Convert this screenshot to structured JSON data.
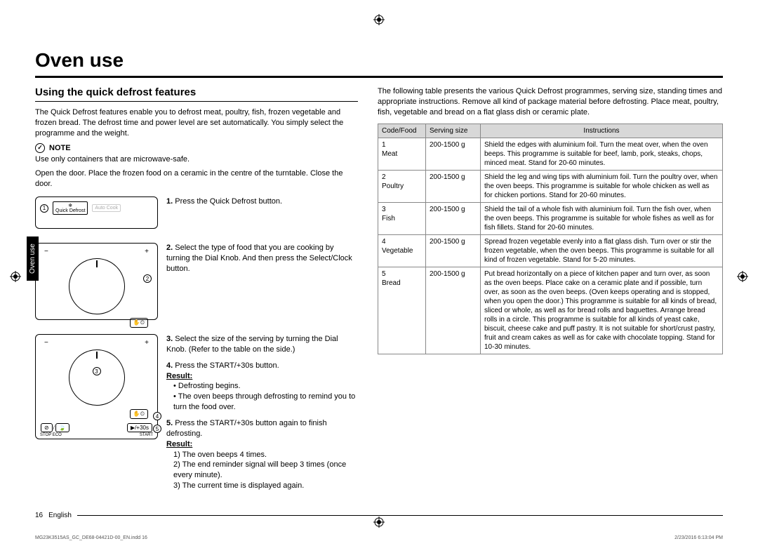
{
  "page_title": "Oven use",
  "side_tab": "Oven use",
  "left": {
    "section_title": "Using the quick defrost features",
    "intro": "The Quick Defrost features enable you to defrost meat, poultry, fish, frozen vegetable and frozen bread. The defrost time and power level are set automatically. You simply select the programme and the weight.",
    "note_label": "NOTE",
    "note_line1": "Use only containers that are microwave-safe.",
    "note_line2": "Open the door. Place the frozen food on a ceramic in the centre of the turntable. Close the door.",
    "diagram1_label": "Quick Defrost",
    "diagram1_right": "Auto Cook",
    "step1": "Press the Quick Defrost button.",
    "step2": "Select the type of food that you are cooking by turning the Dial Knob. And then press the Select/Clock button.",
    "step3": "Select the size of the serving by turning the Dial Knob. (Refer to the table on the side.)",
    "step4": "Press the START/+30s button.",
    "result_label": "Result:",
    "step4_b1": "Defrosting begins.",
    "step4_b2": "The oven beeps through defrosting to remind you to turn the food over.",
    "step5": "Press the START/+30s button again to finish defrosting.",
    "step5_r1": "The oven beeps 4 times.",
    "step5_r2": "The end reminder signal will beep 3 times (once every minute).",
    "step5_r3": "The current time is displayed again.",
    "btn_stop": "STOP",
    "btn_eco": "ECO",
    "btn_start": "START",
    "btn_plus30": "/+30s"
  },
  "right": {
    "intro": "The following table presents the various Quick Defrost programmes, serving size, standing times and appropriate instructions. Remove all kind of package material before defrosting. Place meat, poultry, fish, vegetable and bread on a flat glass dish or ceramic plate.",
    "headers": {
      "code": "Code/Food",
      "size": "Serving size",
      "instr": "Instructions"
    },
    "rows": [
      {
        "code": "1",
        "food": "Meat",
        "size": "200-1500 g",
        "instr": "Shield the edges with aluminium foil. Turn the meat over, when the oven beeps. This programme is suitable for beef, lamb, pork, steaks, chops, minced meat. Stand for 20-60 minutes."
      },
      {
        "code": "2",
        "food": "Poultry",
        "size": "200-1500 g",
        "instr": "Shield the leg and wing tips with aluminium foil. Turn the poultry over, when the oven beeps. This programme is suitable for whole chicken as well as for chicken portions. Stand for 20-60 minutes."
      },
      {
        "code": "3",
        "food": "Fish",
        "size": "200-1500 g",
        "instr": "Shield the tail of a whole fish with aluminium foil. Turn the fish over, when the oven beeps. This programme is suitable for whole fishes as well as for fish fillets. Stand for 20-60 minutes."
      },
      {
        "code": "4",
        "food": "Vegetable",
        "size": "200-1500 g",
        "instr": "Spread frozen vegetable evenly into a flat glass dish. Turn over or stir the frozen vegetable, when the oven beeps. This programme is suitable for all kind of frozen vegetable. Stand for 5-20 minutes."
      },
      {
        "code": "5",
        "food": "Bread",
        "size": "200-1500 g",
        "instr": "Put bread horizontally on a piece of kitchen paper and turn over, as soon as the oven beeps. Place cake on a ceramic plate and if possible, turn over, as soon as the oven beeps. (Oven keeps operating and is stopped, when you open the door.) This programme is suitable for all kinds of bread, sliced or whole, as well as for bread rolls and baguettes. Arrange bread rolls in a circle. This programme is suitable for all kinds of yeast cake, biscuit, cheese cake and puff pastry. It is not suitable for short/crust pastry, fruit and cream cakes as well as for cake with chocolate topping. Stand for 10-30 minutes."
      }
    ]
  },
  "footer": {
    "page": "16",
    "lang": "English"
  },
  "tiny": {
    "left": "MG23K3515AS_GC_DE68-04421D-00_EN.indd   16",
    "right": "2/23/2016   6:13:04 PM"
  }
}
